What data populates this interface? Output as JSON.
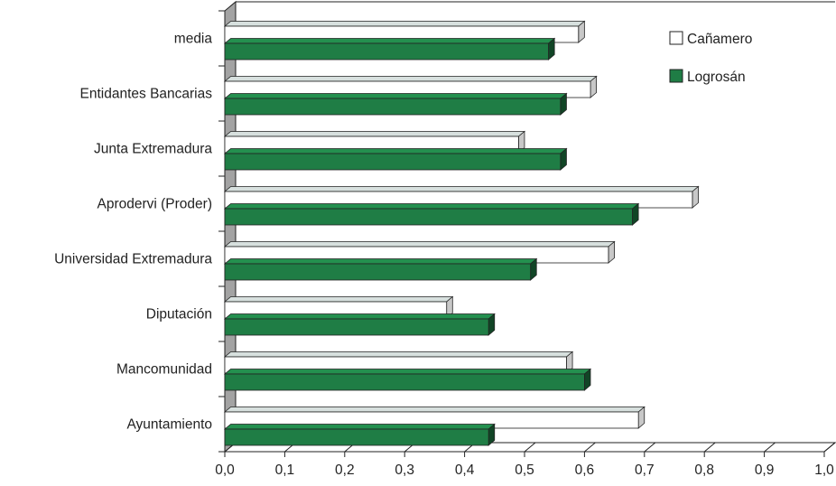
{
  "chart_data": {
    "type": "bar",
    "orientation": "horizontal",
    "three_d": true,
    "categories": [
      "media",
      "Entidantes Bancarias",
      "Junta Extremadura ",
      "Aprodervi (Proder)",
      "Universidad Extremadura",
      "Diputación",
      "Mancomunidad",
      "Ayuntamiento"
    ],
    "series": [
      {
        "name": "Cañamero",
        "color": "#ffffff",
        "values": [
          0.59,
          0.61,
          0.49,
          0.78,
          0.64,
          0.37,
          0.57,
          0.69
        ]
      },
      {
        "name": "Logrosán",
        "color": "#1f7d45",
        "values": [
          0.54,
          0.56,
          0.56,
          0.68,
          0.51,
          0.44,
          0.6,
          0.44
        ]
      }
    ],
    "xlim": [
      0,
      1
    ],
    "xticks": [
      "0,0",
      "0,1",
      "0,2",
      "0,3",
      "0,4",
      "0,5",
      "0,6",
      "0,7",
      "0,8",
      "0,9",
      "1,0"
    ],
    "legend_position": "top-right",
    "grid": true,
    "title": "",
    "xlabel": "",
    "ylabel": ""
  }
}
